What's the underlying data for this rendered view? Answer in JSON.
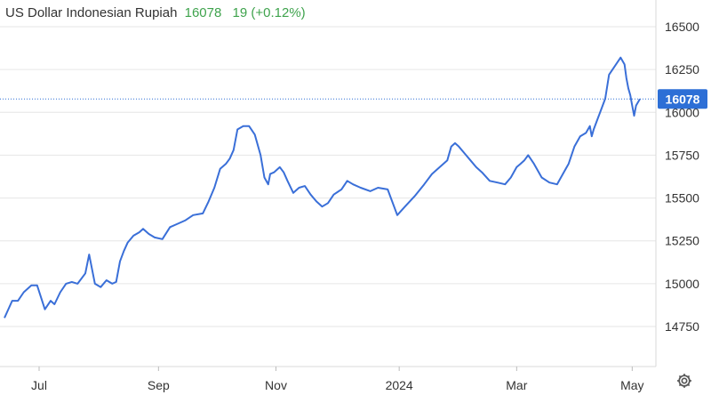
{
  "header": {
    "title": "US Dollar Indonesian Rupiah",
    "price": "16078",
    "change": "19 (+0.12%)"
  },
  "colors": {
    "line": "#3a6fd8",
    "grid": "#e6e6e6",
    "header_price": "#3fa34d",
    "label_bg": "#2d6fd6"
  },
  "icons": {
    "settings": "gear-icon"
  },
  "chart_data": {
    "type": "line",
    "title": "US Dollar Indonesian Rupiah",
    "xlabel": "",
    "ylabel": "",
    "ylim": [
      14650,
      16560
    ],
    "y_ticks": [
      14750,
      15000,
      15250,
      15500,
      15750,
      16000,
      16250,
      16500
    ],
    "x_tick_labels": [
      "Jul",
      "Sep",
      "Nov",
      "2024",
      "Mar",
      "May"
    ],
    "x_tick_positions": [
      18,
      80,
      141,
      205,
      266,
      326
    ],
    "x_range": [
      0,
      338
    ],
    "grid": true,
    "last_value": "16078",
    "last_value_numeric": 16078,
    "series": [
      {
        "x": [
          0,
          4,
          7,
          10,
          14,
          17,
          21,
          24,
          26,
          29,
          32,
          35,
          38,
          42,
          44,
          47,
          50,
          53,
          56,
          58,
          60,
          62,
          64,
          67,
          70,
          72,
          75,
          78,
          82,
          86,
          90,
          94,
          98,
          103,
          106,
          109,
          112,
          115,
          117,
          119,
          121,
          124,
          127,
          130,
          133,
          135,
          137,
          138,
          140,
          141,
          143,
          145,
          147,
          150,
          153,
          156,
          159,
          162,
          165,
          168,
          171,
          175,
          178,
          181,
          185,
          190,
          194,
          199,
          204,
          208,
          213,
          218,
          222,
          226,
          230,
          232,
          234,
          236,
          239,
          242,
          245,
          248,
          252,
          256,
          260,
          263,
          266,
          268,
          270,
          272,
          275,
          279,
          283,
          287,
          290,
          293,
          296,
          299,
          302,
          304,
          305,
          306,
          308,
          310,
          312,
          314,
          317,
          320,
          322,
          323,
          324,
          325,
          326,
          327,
          328,
          330
        ],
        "values": [
          14800,
          14900,
          14900,
          14950,
          14990,
          14990,
          14850,
          14900,
          14880,
          14950,
          15000,
          15010,
          15000,
          15060,
          15170,
          15000,
          14980,
          15020,
          15000,
          15010,
          15130,
          15190,
          15240,
          15280,
          15300,
          15320,
          15290,
          15270,
          15260,
          15330,
          15350,
          15370,
          15400,
          15410,
          15480,
          15560,
          15670,
          15700,
          15730,
          15780,
          15900,
          15920,
          15920,
          15870,
          15750,
          15620,
          15580,
          15640,
          15650,
          15660,
          15680,
          15650,
          15600,
          15530,
          15560,
          15570,
          15520,
          15480,
          15450,
          15470,
          15520,
          15550,
          15600,
          15580,
          15560,
          15540,
          15560,
          15550,
          15400,
          15450,
          15510,
          15580,
          15640,
          15680,
          15720,
          15800,
          15820,
          15800,
          15760,
          15720,
          15680,
          15650,
          15600,
          15590,
          15580,
          15620,
          15680,
          15700,
          15720,
          15750,
          15700,
          15620,
          15590,
          15580,
          15640,
          15700,
          15800,
          15860,
          15880,
          15920,
          15860,
          15900,
          15960,
          16020,
          16080,
          16220,
          16270,
          16320,
          16280,
          16200,
          16140,
          16100,
          16040,
          15980,
          16040,
          16078
        ]
      }
    ]
  }
}
